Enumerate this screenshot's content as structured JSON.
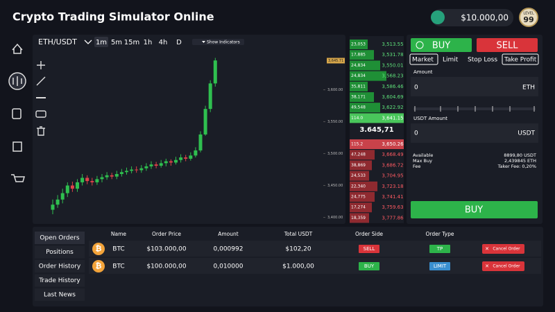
{
  "header": {
    "title": "Crypto Trading Simulator Online",
    "balance": "$10.000,00",
    "level_label": "LEVEL",
    "level": 99
  },
  "toolbar": {
    "pair": "ETH/USDT",
    "intervals": [
      "1m",
      "5m",
      "15m",
      "1h",
      "4h",
      "D"
    ],
    "indicators": "Show Indicators"
  },
  "chart": {
    "type": "candlestick",
    "up_color": "#2fbf4f",
    "down_color": "#e0434a",
    "ylim": [
      3393,
      3681
    ],
    "yticks": [
      {
        "value": 3400,
        "label": "3,400.00"
      },
      {
        "value": 3450,
        "label": "3,450.00"
      },
      {
        "value": 3500,
        "label": "3,500.00"
      },
      {
        "value": 3550,
        "label": "3,550.00"
      },
      {
        "value": 3600,
        "label": "3,600.00"
      }
    ],
    "last_price": {
      "value": 3645.71,
      "label": "3,645.71"
    },
    "candles": [
      {
        "o": 3412,
        "h": 3428,
        "l": 3405,
        "c": 3420
      },
      {
        "o": 3420,
        "h": 3435,
        "l": 3415,
        "c": 3428
      },
      {
        "o": 3428,
        "h": 3445,
        "l": 3422,
        "c": 3438
      },
      {
        "o": 3438,
        "h": 3455,
        "l": 3432,
        "c": 3450
      },
      {
        "o": 3450,
        "h": 3456,
        "l": 3440,
        "c": 3445
      },
      {
        "o": 3445,
        "h": 3460,
        "l": 3440,
        "c": 3455
      },
      {
        "o": 3455,
        "h": 3468,
        "l": 3450,
        "c": 3462
      },
      {
        "o": 3462,
        "h": 3466,
        "l": 3452,
        "c": 3457
      },
      {
        "o": 3457,
        "h": 3462,
        "l": 3450,
        "c": 3455
      },
      {
        "o": 3455,
        "h": 3465,
        "l": 3451,
        "c": 3460
      },
      {
        "o": 3460,
        "h": 3468,
        "l": 3455,
        "c": 3463
      },
      {
        "o": 3463,
        "h": 3471,
        "l": 3459,
        "c": 3466
      },
      {
        "o": 3466,
        "h": 3470,
        "l": 3460,
        "c": 3464
      },
      {
        "o": 3464,
        "h": 3473,
        "l": 3460,
        "c": 3468
      },
      {
        "o": 3468,
        "h": 3476,
        "l": 3464,
        "c": 3471
      },
      {
        "o": 3471,
        "h": 3478,
        "l": 3467,
        "c": 3473
      },
      {
        "o": 3473,
        "h": 3480,
        "l": 3469,
        "c": 3475
      },
      {
        "o": 3475,
        "h": 3480,
        "l": 3470,
        "c": 3474
      },
      {
        "o": 3474,
        "h": 3482,
        "l": 3470,
        "c": 3477
      },
      {
        "o": 3477,
        "h": 3485,
        "l": 3473,
        "c": 3480
      },
      {
        "o": 3480,
        "h": 3488,
        "l": 3476,
        "c": 3483
      },
      {
        "o": 3483,
        "h": 3487,
        "l": 3477,
        "c": 3481
      },
      {
        "o": 3481,
        "h": 3490,
        "l": 3478,
        "c": 3485
      },
      {
        "o": 3485,
        "h": 3492,
        "l": 3480,
        "c": 3488
      },
      {
        "o": 3488,
        "h": 3491,
        "l": 3481,
        "c": 3486
      },
      {
        "o": 3486,
        "h": 3495,
        "l": 3483,
        "c": 3490
      },
      {
        "o": 3490,
        "h": 3499,
        "l": 3486,
        "c": 3494
      },
      {
        "o": 3494,
        "h": 3498,
        "l": 3488,
        "c": 3492
      },
      {
        "o": 3492,
        "h": 3502,
        "l": 3489,
        "c": 3497
      },
      {
        "o": 3497,
        "h": 3510,
        "l": 3494,
        "c": 3505
      },
      {
        "o": 3505,
        "h": 3535,
        "l": 3502,
        "c": 3530
      },
      {
        "o": 3530,
        "h": 3575,
        "l": 3528,
        "c": 3570
      },
      {
        "o": 3570,
        "h": 3615,
        "l": 3565,
        "c": 3610
      },
      {
        "o": 3610,
        "h": 3650,
        "l": 3605,
        "c": 3646
      }
    ]
  },
  "order_book": {
    "green_rows": [
      {
        "amount": "23,053",
        "price": "3,513.55"
      },
      {
        "amount": "17,885",
        "price": "3,531.78"
      },
      {
        "amount": "24,834",
        "price": "3,550.01"
      },
      {
        "amount": "24,834",
        "price": "3,568.23"
      },
      {
        "amount": "35,811",
        "price": "3,586.46"
      },
      {
        "amount": "38,171",
        "price": "3,604.69"
      },
      {
        "amount": "49,548",
        "price": "3,622.92"
      },
      {
        "amount": "114.0",
        "price": "3,641.15"
      }
    ],
    "last": "3.645,71",
    "red_rows": [
      {
        "amount": "115.2",
        "price": "3,650.26"
      },
      {
        "amount": "47,248",
        "price": "3,668.49"
      },
      {
        "amount": "38,869",
        "price": "3,686.72"
      },
      {
        "amount": "24,533",
        "price": "3,704.95"
      },
      {
        "amount": "22,340",
        "price": "3,723.18"
      },
      {
        "amount": "24,775",
        "price": "3,741.41"
      },
      {
        "amount": "17,274",
        "price": "3,759.63"
      },
      {
        "amount": "18,359",
        "price": "3,777.86"
      }
    ]
  },
  "trade_panel": {
    "buy": "BUY",
    "sell": "SELL",
    "order_types": [
      "Market",
      "Limit",
      "Stop Loss",
      "Take Profit"
    ],
    "amount_label": "Amount",
    "amount_value": "0",
    "amount_unit": "ETH",
    "usdt_label": "USDT Amount",
    "usdt_value": "0",
    "usdt_unit": "USDT",
    "info": [
      {
        "label": "Available",
        "value": "8899,80 USDT"
      },
      {
        "label": "Max Buy",
        "value": "2,439845 ETH"
      },
      {
        "label": "Fee",
        "value": "Taker Fee: 0,20%"
      }
    ],
    "submit": "BUY"
  },
  "orders": {
    "tabs": [
      "Open Orders",
      "Positions",
      "Order History",
      "Trade History",
      "Last News"
    ],
    "columns": [
      "Name",
      "Order Price",
      "Amount",
      "Total USDT",
      "Order Side",
      "Order Type"
    ],
    "rows": [
      {
        "name": "BTC",
        "price": "$103.000,00",
        "amount": "0,000992",
        "total": "$102,20",
        "side": "SELL",
        "type": "TP",
        "action": "Cancel Order"
      },
      {
        "name": "BTC",
        "price": "$100.000,00",
        "amount": "0,010000",
        "total": "$1.000,00",
        "side": "BUY",
        "type": "LIMIT",
        "action": "Cancel Order"
      }
    ]
  }
}
